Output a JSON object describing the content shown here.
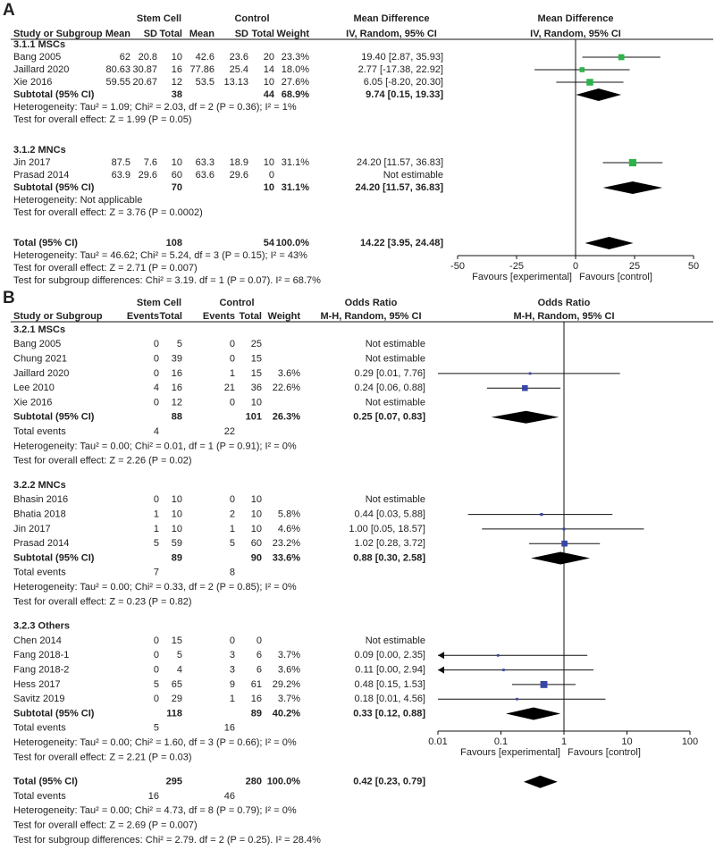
{
  "chart_data": [
    {
      "type": "forest",
      "panel_label": "A",
      "group_labels": [
        "Stem Cell",
        "Control"
      ],
      "effect_title": "Mean Difference",
      "effect_method": "IV, Random, 95% CI",
      "plot_title": "Mean Difference",
      "plot_method": "IV, Random, 95% CI",
      "columns": [
        "Study or Subgroup",
        "Mean",
        "SD",
        "Total",
        "Mean",
        "SD",
        "Total",
        "Weight"
      ],
      "rows": [
        {
          "kind": "heading",
          "label": "3.1.1 MSCs"
        },
        {
          "kind": "study",
          "cells": [
            "Bang  2005",
            "62",
            "20.8",
            "10",
            "42.6",
            "23.6",
            "20",
            "23.3%"
          ],
          "effect_label": "19.40 [2.87, 35.93]",
          "estimate": 19.4,
          "ci": [
            2.87,
            35.93
          ]
        },
        {
          "kind": "study",
          "cells": [
            "Jaillard 2020",
            "80.63",
            "30.87",
            "16",
            "77.86",
            "25.4",
            "14",
            "18.0%"
          ],
          "effect_label": "2.77 [-17.38, 22.92]",
          "estimate": 2.77,
          "ci": [
            -17.38,
            22.92
          ]
        },
        {
          "kind": "study",
          "cells": [
            "Xie  2016",
            "59.55",
            "20.67",
            "12",
            "53.5",
            "13.13",
            "10",
            "27.6%"
          ],
          "effect_label": "6.05 [-8.20, 20.30]",
          "estimate": 6.05,
          "ci": [
            -8.2,
            20.3
          ]
        },
        {
          "kind": "subtotal",
          "cells": [
            "Subtotal (95% CI)",
            null,
            null,
            "38",
            null,
            null,
            "44",
            "68.9%"
          ],
          "effect_label": "9.74 [0.15, 19.33]",
          "estimate": 9.74,
          "ci": [
            0.15,
            19.33
          ]
        },
        {
          "kind": "note",
          "label": "Heterogeneity: Tau² = 1.09; Chi² = 2.03, df = 2 (P = 0.36); I² = 1%"
        },
        {
          "kind": "note",
          "label": "Test for overall effect: Z = 1.99 (P = 0.05)"
        },
        {
          "kind": "heading",
          "label": "3.1.2 MNCs"
        },
        {
          "kind": "study",
          "cells": [
            "Jin  2017",
            "87.5",
            "7.6",
            "10",
            "63.3",
            "18.9",
            "10",
            "31.1%"
          ],
          "effect_label": "24.20 [11.57, 36.83]",
          "estimate": 24.2,
          "ci": [
            11.57,
            36.83
          ]
        },
        {
          "kind": "study",
          "cells": [
            "Prasad  2014",
            "63.9",
            "29.6",
            "60",
            "63.6",
            "29.6",
            "0",
            null
          ],
          "effect_label": "Not estimable"
        },
        {
          "kind": "subtotal",
          "cells": [
            "Subtotal (95% CI)",
            null,
            null,
            "70",
            null,
            null,
            "10",
            "31.1%"
          ],
          "effect_label": "24.20 [11.57, 36.83]",
          "estimate": 24.2,
          "ci": [
            11.57,
            36.83
          ]
        },
        {
          "kind": "note",
          "label": "Heterogeneity: Not applicable"
        },
        {
          "kind": "note",
          "label": "Test for overall effect: Z = 3.76 (P = 0.0002)"
        },
        {
          "kind": "total",
          "cells": [
            "Total (95% CI)",
            null,
            null,
            "108",
            null,
            null,
            "54",
            "100.0%"
          ],
          "effect_label": "14.22 [3.95, 24.48]",
          "estimate": 14.22,
          "ci": [
            3.95,
            24.48
          ]
        },
        {
          "kind": "note",
          "label": "Heterogeneity: Tau² = 46.62; Chi² = 5.24, df = 3 (P = 0.15); I² = 43%"
        },
        {
          "kind": "note",
          "label": "Test for overall effect: Z = 2.71 (P = 0.007)"
        },
        {
          "kind": "note",
          "label": "Test for subgroup differences: Chi² = 3.19. df = 1 (P = 0.07). I² = 68.7%"
        }
      ],
      "xlim": [
        -50,
        50
      ],
      "xticks": [
        -50,
        -25,
        0,
        25,
        50
      ],
      "log_scale": false,
      "favours": [
        "Favours [experimental]",
        "Favours [control]"
      ],
      "marker_color": "#2eb34b"
    },
    {
      "type": "forest",
      "panel_label": "B",
      "group_labels": [
        "Stem Cell",
        "Control"
      ],
      "effect_title": "Odds Ratio",
      "effect_method": "M-H, Random, 95% CI",
      "plot_title": "Odds Ratio",
      "plot_method": "M-H, Random, 95% CI",
      "columns": [
        "Study or Subgroup",
        "Events",
        "Total",
        "Events",
        "Total",
        "Weight"
      ],
      "rows": [
        {
          "kind": "heading",
          "label": "3.2.1 MSCs"
        },
        {
          "kind": "study",
          "cells": [
            "Bang  2005",
            "0",
            "5",
            "0",
            "25",
            null
          ],
          "effect_label": "Not estimable"
        },
        {
          "kind": "study",
          "cells": [
            "Chung 2021",
            "0",
            "39",
            "0",
            "15",
            null
          ],
          "effect_label": "Not estimable"
        },
        {
          "kind": "study",
          "cells": [
            "Jaillard 2020",
            "0",
            "16",
            "1",
            "15",
            "3.6%"
          ],
          "effect_label": "0.29 [0.01, 7.76]",
          "estimate": 0.29,
          "ci": [
            0.01,
            7.76
          ]
        },
        {
          "kind": "study",
          "cells": [
            "Lee  2010",
            "4",
            "16",
            "21",
            "36",
            "22.6%"
          ],
          "effect_label": "0.24 [0.06, 0.88]",
          "estimate": 0.24,
          "ci": [
            0.06,
            0.88
          ]
        },
        {
          "kind": "study",
          "cells": [
            "Xie  2016",
            "0",
            "12",
            "0",
            "10",
            null
          ],
          "effect_label": "Not estimable"
        },
        {
          "kind": "subtotal",
          "cells": [
            "Subtotal (95% CI)",
            null,
            "88",
            null,
            "101",
            "26.3%"
          ],
          "effect_label": "0.25 [0.07, 0.83]",
          "estimate": 0.25,
          "ci": [
            0.07,
            0.83
          ]
        },
        {
          "kind": "events",
          "cells": [
            "Total events",
            "4",
            null,
            "22",
            null
          ]
        },
        {
          "kind": "note",
          "label": "Heterogeneity: Tau² = 0.00; Chi² = 0.01, df = 1 (P = 0.91); I² = 0%"
        },
        {
          "kind": "note",
          "label": "Test for overall effect: Z = 2.26 (P = 0.02)"
        },
        {
          "kind": "heading",
          "label": "3.2.2 MNCs"
        },
        {
          "kind": "study",
          "cells": [
            "Bhasin  2016",
            "0",
            "10",
            "0",
            "10",
            null
          ],
          "effect_label": "Not estimable"
        },
        {
          "kind": "study",
          "cells": [
            "Bhatia  2018",
            "1",
            "10",
            "2",
            "10",
            "5.8%"
          ],
          "effect_label": "0.44 [0.03, 5.88]",
          "estimate": 0.44,
          "ci": [
            0.03,
            5.88
          ]
        },
        {
          "kind": "study",
          "cells": [
            "Jin  2017",
            "1",
            "10",
            "1",
            "10",
            "4.6%"
          ],
          "effect_label": "1.00 [0.05, 18.57]",
          "estimate": 1.0,
          "ci": [
            0.05,
            18.57
          ]
        },
        {
          "kind": "study",
          "cells": [
            "Prasad  2014",
            "5",
            "59",
            "5",
            "60",
            "23.2%"
          ],
          "effect_label": "1.02 [0.28, 3.72]",
          "estimate": 1.02,
          "ci": [
            0.28,
            3.72
          ]
        },
        {
          "kind": "subtotal",
          "cells": [
            "Subtotal (95% CI)",
            null,
            "89",
            null,
            "90",
            "33.6%"
          ],
          "effect_label": "0.88 [0.30, 2.58]",
          "estimate": 0.88,
          "ci": [
            0.3,
            2.58
          ]
        },
        {
          "kind": "events",
          "cells": [
            "Total events",
            "7",
            null,
            "8",
            null
          ]
        },
        {
          "kind": "note",
          "label": "Heterogeneity: Tau² = 0.00; Chi² = 0.33, df = 2 (P = 0.85); I² = 0%"
        },
        {
          "kind": "note",
          "label": "Test for overall effect: Z = 0.23 (P = 0.82)"
        },
        {
          "kind": "heading",
          "label": "3.2.3 Others"
        },
        {
          "kind": "study",
          "cells": [
            "Chen  2014",
            "0",
            "15",
            "0",
            "0",
            null
          ],
          "effect_label": "Not estimable"
        },
        {
          "kind": "study",
          "cells": [
            "Fang 2018-1",
            "0",
            "5",
            "3",
            "6",
            "3.7%"
          ],
          "effect_label": "0.09 [0.00, 2.35]",
          "estimate": 0.09,
          "ci": [
            0.0,
            2.35
          ]
        },
        {
          "kind": "study",
          "cells": [
            "Fang 2018-2",
            "0",
            "4",
            "3",
            "6",
            "3.6%"
          ],
          "effect_label": "0.11 [0.00, 2.94]",
          "estimate": 0.11,
          "ci": [
            0.0,
            2.94
          ]
        },
        {
          "kind": "study",
          "cells": [
            "Hess  2017",
            "5",
            "65",
            "9",
            "61",
            "29.2%"
          ],
          "effect_label": "0.48 [0.15, 1.53]",
          "estimate": 0.48,
          "ci": [
            0.15,
            1.53
          ]
        },
        {
          "kind": "study",
          "cells": [
            "Savitz  2019",
            "0",
            "29",
            "1",
            "16",
            "3.7%"
          ],
          "effect_label": "0.18 [0.01, 4.56]",
          "estimate": 0.18,
          "ci": [
            0.01,
            4.56
          ]
        },
        {
          "kind": "subtotal",
          "cells": [
            "Subtotal (95% CI)",
            null,
            "118",
            null,
            "89",
            "40.2%"
          ],
          "effect_label": "0.33 [0.12, 0.88]",
          "estimate": 0.33,
          "ci": [
            0.12,
            0.88
          ]
        },
        {
          "kind": "events",
          "cells": [
            "Total events",
            "5",
            null,
            "16",
            null
          ]
        },
        {
          "kind": "note",
          "label": "Heterogeneity: Tau² = 0.00; Chi² = 1.60, df = 3 (P = 0.66); I² = 0%"
        },
        {
          "kind": "note",
          "label": "Test for overall effect: Z = 2.21 (P = 0.03)"
        },
        {
          "kind": "total",
          "cells": [
            "Total (95% CI)",
            null,
            "295",
            null,
            "280",
            "100.0%"
          ],
          "effect_label": "0.42 [0.23, 0.79]",
          "estimate": 0.42,
          "ci": [
            0.23,
            0.79
          ]
        },
        {
          "kind": "events",
          "cells": [
            "Total events",
            "16",
            null,
            "46",
            null
          ]
        },
        {
          "kind": "note",
          "label": "Heterogeneity: Tau² = 0.00; Chi² = 4.73, df = 8 (P = 0.79); I² = 0%"
        },
        {
          "kind": "note",
          "label": "Test for overall effect: Z = 2.69 (P = 0.007)"
        },
        {
          "kind": "note",
          "label": "Test for subgroup differences: Chi² = 2.79. df = 2 (P = 0.25). I² = 28.4%"
        }
      ],
      "xlim": [
        0.01,
        100
      ],
      "xticks": [
        0.01,
        0.1,
        1,
        10,
        100
      ],
      "log_scale": true,
      "favours": [
        "Favours [experimental]",
        "Favours [control]"
      ],
      "marker_color": "#3846a6"
    }
  ]
}
